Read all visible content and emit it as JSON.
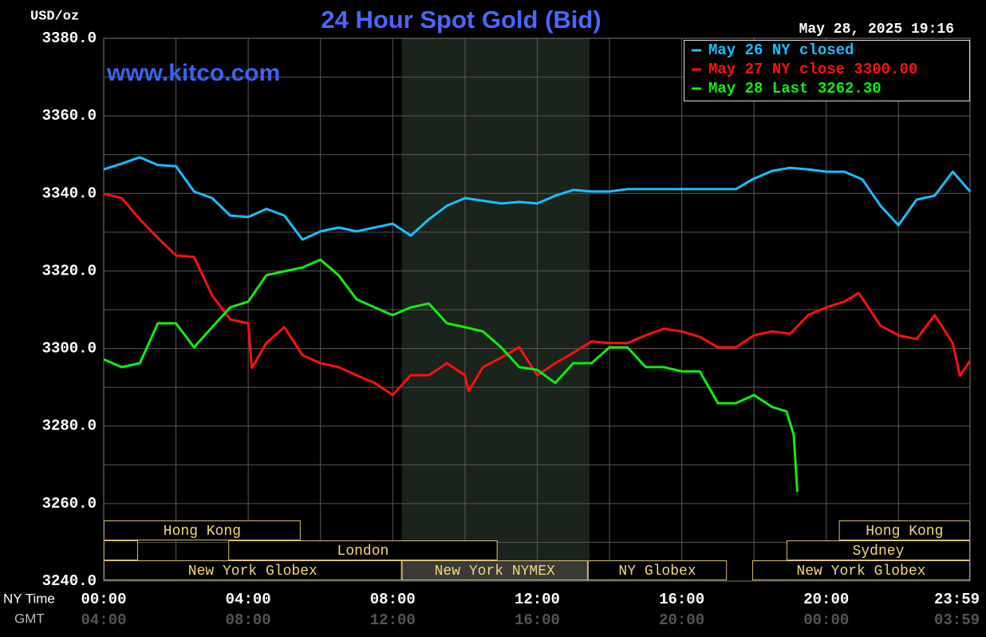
{
  "chart_data": {
    "type": "line",
    "title": "24 Hour Spot Gold (Bid)",
    "y_unit": "USD/oz",
    "timestamp": "May 28, 2025 19:16",
    "watermark": "www.kitco.com",
    "x_row_label": "NY Time",
    "x2_row_label": "GMT",
    "xlim": [
      0,
      23.98
    ],
    "xticks": [
      {
        "value": 0,
        "label": "00:00"
      },
      {
        "value": 4,
        "label": "04:00"
      },
      {
        "value": 8,
        "label": "08:00"
      },
      {
        "value": 12,
        "label": "12:00"
      },
      {
        "value": 16,
        "label": "16:00"
      },
      {
        "value": 20,
        "label": "20:00"
      },
      {
        "value": 23.98,
        "label": "23:59"
      }
    ],
    "x2ticks": [
      {
        "value": 0,
        "label": "04:00"
      },
      {
        "value": 4,
        "label": "08:00"
      },
      {
        "value": 8,
        "label": "12:00"
      },
      {
        "value": 12,
        "label": "16:00"
      },
      {
        "value": 16,
        "label": "20:00"
      },
      {
        "value": 20,
        "label": "00:00"
      },
      {
        "value": 23.98,
        "label": "03:59"
      }
    ],
    "xgrid": [
      2,
      6,
      10,
      14,
      18,
      22
    ],
    "ylim": [
      3240,
      3380
    ],
    "yticks": [
      {
        "value": 3240,
        "label": "3240.0"
      },
      {
        "value": 3260,
        "label": "3260.0"
      },
      {
        "value": 3280,
        "label": "3280.0"
      },
      {
        "value": 3300,
        "label": "3300.0"
      },
      {
        "value": 3320,
        "label": "3320.0"
      },
      {
        "value": 3340,
        "label": "3340.0"
      },
      {
        "value": 3360,
        "label": "3360.0"
      },
      {
        "value": 3380,
        "label": "3380.0"
      }
    ],
    "ygrid": [
      3250,
      3270,
      3290,
      3310,
      3330,
      3350,
      3370
    ],
    "grid": true,
    "legend": "top-right",
    "shaded_region": [
      8.25,
      13.45
    ],
    "sessions": [
      {
        "label": "Hong Kong",
        "row": 0,
        "start": 0,
        "end": 5.45
      },
      {
        "label": "Hong Kong",
        "row": 0,
        "start": 20.35,
        "end": 23.98
      },
      {
        "label": null,
        "row": 1,
        "start": 0,
        "end": 0.95
      },
      {
        "label": "London",
        "row": 1,
        "start": 3.45,
        "end": 10.9
      },
      {
        "label": "Sydney",
        "row": 1,
        "start": 18.9,
        "end": 23.98
      },
      {
        "label": "New York Globex",
        "row": 2,
        "start": 0,
        "end": 8.25
      },
      {
        "label": "New York NYMEX",
        "row": 2,
        "start": 8.25,
        "end": 13.4,
        "fill": "#3a3a36"
      },
      {
        "label": "NY Globex",
        "row": 2,
        "start": 13.4,
        "end": 17.25
      },
      {
        "label": "New York Globex",
        "row": 2,
        "start": 17.95,
        "end": 23.98
      }
    ],
    "series": [
      {
        "name": "May 26 NY closed",
        "color": "#19bfff",
        "x": [
          0,
          0.5,
          1,
          1.5,
          2,
          2.5,
          3,
          3.5,
          4,
          4.5,
          5,
          5.5,
          6,
          6.5,
          7,
          7.5,
          8,
          8.5,
          9,
          9.5,
          10,
          10.5,
          11,
          11.5,
          12,
          12.5,
          13,
          13.5,
          14,
          14.5,
          15,
          15.5,
          16,
          16.5,
          17,
          17.5,
          17.95,
          18.5,
          19,
          19.5,
          20,
          20.5,
          21,
          21.5,
          22,
          22.5,
          23,
          23.5,
          23.98
        ],
        "values": [
          3346.2,
          3347.7,
          3349.3,
          3347.3,
          3347,
          3340.5,
          3338.8,
          3334.3,
          3333.9,
          3336,
          3334.3,
          3328.1,
          3330.2,
          3331.2,
          3330.2,
          3331.2,
          3332.2,
          3329.1,
          3333.3,
          3336.8,
          3338.8,
          3338.1,
          3337.4,
          3337.8,
          3337.4,
          3339.4,
          3340.9,
          3340.5,
          3340.5,
          3341.1,
          3341.1,
          3341.1,
          3341.1,
          3341.1,
          3341.1,
          3341.1,
          3343.6,
          3345.8,
          3346.6,
          3346.2,
          3345.6,
          3345.6,
          3343.6,
          3336.8,
          3331.8,
          3338.4,
          3339.4,
          3345.6,
          3340.5
        ]
      },
      {
        "name": "May 27 NY close 3300.00",
        "color": "#ff1010",
        "x": [
          0,
          0.5,
          1,
          1.5,
          2,
          2.5,
          3,
          3.5,
          4,
          4.1,
          4.5,
          5,
          5.5,
          6,
          6.5,
          7,
          7.5,
          8,
          8.5,
          9,
          9.5,
          10,
          10.1,
          10.5,
          11,
          11.5,
          12,
          12.5,
          13,
          13.5,
          14,
          14.5,
          15,
          15.5,
          16,
          16.5,
          17,
          17.5,
          18,
          18.5,
          19,
          19.5,
          20,
          20.5,
          20.9,
          21.5,
          22,
          22.5,
          23,
          23.5,
          23.7,
          23.98
        ],
        "values": [
          3339.9,
          3338.8,
          3333.3,
          3328.5,
          3324,
          3323.6,
          3313.7,
          3307.5,
          3306.5,
          3295,
          3301.4,
          3305.5,
          3298.3,
          3296.2,
          3295.2,
          3293.1,
          3291.1,
          3288,
          3293.1,
          3293.1,
          3296.2,
          3293.1,
          3289,
          3295.2,
          3297.6,
          3300.3,
          3293.1,
          3296.2,
          3298.9,
          3301.8,
          3301.4,
          3301.4,
          3303.4,
          3305.1,
          3304.4,
          3303,
          3300.3,
          3300.3,
          3303.4,
          3304.4,
          3303.8,
          3308.6,
          3310.6,
          3312.1,
          3314.3,
          3305.9,
          3303.4,
          3302.4,
          3308.6,
          3301.4,
          3293,
          3296.8
        ]
      },
      {
        "name": "May 28 Last 3262.30",
        "color": "#10ee10",
        "x": [
          0,
          0.5,
          1,
          1.5,
          2,
          2.5,
          3,
          3.5,
          4,
          4.5,
          5,
          5.5,
          6,
          6.5,
          7,
          7.5,
          8,
          8.5,
          9,
          9.5,
          10,
          10.5,
          11,
          11.5,
          12,
          12.5,
          13,
          13.5,
          14,
          14.5,
          15,
          15.5,
          16,
          16.5,
          17,
          17.5,
          18,
          18.5,
          18.9,
          19.1,
          19.2
        ],
        "values": [
          3297.2,
          3295.2,
          3296.2,
          3306.5,
          3306.5,
          3300.3,
          3305.5,
          3310.6,
          3312.1,
          3318.9,
          3319.9,
          3320.9,
          3322.9,
          3318.9,
          3312.7,
          3310.6,
          3308.6,
          3310.6,
          3311.6,
          3306.5,
          3305.5,
          3304.4,
          3300.3,
          3295.2,
          3294.5,
          3291.1,
          3296.2,
          3296.2,
          3300.3,
          3300.3,
          3295.2,
          3295.2,
          3294.1,
          3294.1,
          3285.9,
          3285.9,
          3288,
          3284.9,
          3283.8,
          3277.7,
          3263
        ]
      }
    ]
  }
}
